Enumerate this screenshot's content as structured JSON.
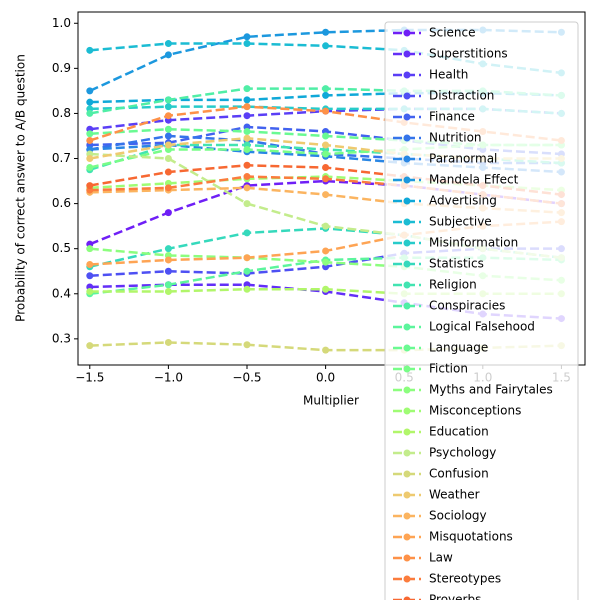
{
  "chart_data": {
    "type": "line",
    "xlabel": "Multiplier",
    "ylabel": "Probability of correct answer to A/B question",
    "x": [
      -1.5,
      -1,
      -0.5,
      0,
      0.5,
      1,
      1.5
    ],
    "xlim": [
      -1.575,
      1.65
    ],
    "ylim": [
      0.242,
      1.025
    ],
    "xticks": [
      {
        "value": -1.5,
        "label": "−1.5"
      },
      {
        "value": -1,
        "label": "−1.0"
      },
      {
        "value": -0.5,
        "label": "−0.5"
      },
      {
        "value": 0,
        "label": "0.0"
      },
      0.5,
      {
        "value": 1,
        "label": "1.0"
      },
      1.5
    ],
    "yticks": [
      0.3,
      0.4,
      0.5,
      0.6,
      0.7,
      0.8,
      0.9,
      {
        "value": 1,
        "label": "1.0"
      }
    ],
    "grid": false,
    "legend": "upper right",
    "series": [
      {
        "name": "Science",
        "color": "#6f1ff6",
        "values": [
          0.51,
          0.58,
          0.64,
          0.65,
          0.64,
          0.62,
          0.6
        ]
      },
      {
        "name": "Superstitions",
        "color": "#632ff7",
        "values": [
          0.415,
          0.42,
          0.42,
          0.405,
          0.38,
          0.355,
          0.345
        ]
      },
      {
        "name": "Health",
        "color": "#5a3ef6",
        "values": [
          0.765,
          0.785,
          0.795,
          0.805,
          0.81,
          0.81,
          0.8
        ]
      },
      {
        "name": "Distraction",
        "color": "#4e50f3",
        "values": [
          0.44,
          0.45,
          0.445,
          0.46,
          0.49,
          0.5,
          0.5
        ]
      },
      {
        "name": "Finance",
        "color": "#4262ef",
        "values": [
          0.73,
          0.735,
          0.77,
          0.76,
          0.74,
          0.72,
          0.71
        ]
      },
      {
        "name": "Nutrition",
        "color": "#3574ea",
        "values": [
          0.72,
          0.75,
          0.74,
          0.71,
          0.7,
          0.69,
          0.69
        ]
      },
      {
        "name": "Paranormal",
        "color": "#2986e4",
        "values": [
          0.72,
          0.73,
          0.715,
          0.705,
          0.69,
          0.68,
          0.67
        ]
      },
      {
        "name": "Mandela Effect",
        "color": "#1c98de",
        "values": [
          0.85,
          0.93,
          0.97,
          0.98,
          0.985,
          0.985,
          0.98
        ]
      },
      {
        "name": "Advertising",
        "color": "#0fa8d8",
        "values": [
          0.825,
          0.83,
          0.83,
          0.84,
          0.845,
          0.845,
          0.84
        ]
      },
      {
        "name": "Subjective",
        "color": "#1bbcd3",
        "values": [
          0.94,
          0.955,
          0.955,
          0.95,
          0.94,
          0.91,
          0.89
        ]
      },
      {
        "name": "Misinformation",
        "color": "#27cbca",
        "values": [
          0.81,
          0.815,
          0.815,
          0.81,
          0.81,
          0.81,
          0.8
        ]
      },
      {
        "name": "Statistics",
        "color": "#35d9bc",
        "values": [
          0.46,
          0.5,
          0.535,
          0.545,
          0.53,
          0.5,
          0.48
        ]
      },
      {
        "name": "Religion",
        "color": "#42e4b1",
        "values": [
          0.675,
          0.73,
          0.73,
          0.72,
          0.71,
          0.7,
          0.69
        ]
      },
      {
        "name": "Conspiracies",
        "color": "#50eea6",
        "values": [
          0.8,
          0.83,
          0.855,
          0.855,
          0.85,
          0.85,
          0.84
        ]
      },
      {
        "name": "Logical Falsehood",
        "color": "#5cf59c",
        "values": [
          0.4,
          0.42,
          0.45,
          0.475,
          0.48,
          0.48,
          0.475
        ]
      },
      {
        "name": "Language",
        "color": "#6afa92",
        "values": [
          0.755,
          0.765,
          0.76,
          0.75,
          0.74,
          0.73,
          0.73
        ]
      },
      {
        "name": "Fiction",
        "color": "#78fd88",
        "values": [
          0.68,
          0.72,
          0.72,
          0.71,
          0.72,
          0.73,
          0.73
        ]
      },
      {
        "name": "Myths and Fairytales",
        "color": "#8cfe7e",
        "values": [
          0.5,
          0.485,
          0.48,
          0.47,
          0.46,
          0.44,
          0.43
        ]
      },
      {
        "name": "Misconceptions",
        "color": "#9ffc74",
        "values": [
          0.635,
          0.645,
          0.655,
          0.66,
          0.65,
          0.64,
          0.63
        ]
      },
      {
        "name": "Education",
        "color": "#b1f66a",
        "values": [
          0.405,
          0.405,
          0.41,
          0.41,
          0.4,
          0.4,
          0.4
        ]
      },
      {
        "name": "Psychology",
        "color": "#c3ec8c",
        "values": [
          0.71,
          0.7,
          0.6,
          0.55,
          0.53,
          0.5,
          0.48
        ]
      },
      {
        "name": "Confusion",
        "color": "#d5d97a",
        "values": [
          0.285,
          0.292,
          0.287,
          0.275,
          0.275,
          0.28,
          0.285
        ]
      },
      {
        "name": "Weather",
        "color": "#eeca70",
        "values": [
          0.7,
          0.73,
          0.745,
          0.73,
          0.71,
          0.7,
          0.7
        ]
      },
      {
        "name": "Sociology",
        "color": "#fbb460",
        "values": [
          0.625,
          0.63,
          0.635,
          0.62,
          0.6,
          0.59,
          0.58
        ]
      },
      {
        "name": "Misquotations",
        "color": "#fea454",
        "values": [
          0.465,
          0.475,
          0.48,
          0.495,
          0.53,
          0.55,
          0.56
        ]
      },
      {
        "name": "Law",
        "color": "#fe9148",
        "values": [
          0.74,
          0.795,
          0.815,
          0.805,
          0.78,
          0.76,
          0.74
        ]
      },
      {
        "name": "Stereotypes",
        "color": "#fb7c3d",
        "values": [
          0.63,
          0.635,
          0.66,
          0.655,
          0.64,
          0.62,
          0.6
        ]
      },
      {
        "name": "Proverbs",
        "color": "#f76832",
        "values": [
          0.64,
          0.67,
          0.685,
          0.68,
          0.66,
          0.64,
          0.62
        ]
      }
    ]
  }
}
